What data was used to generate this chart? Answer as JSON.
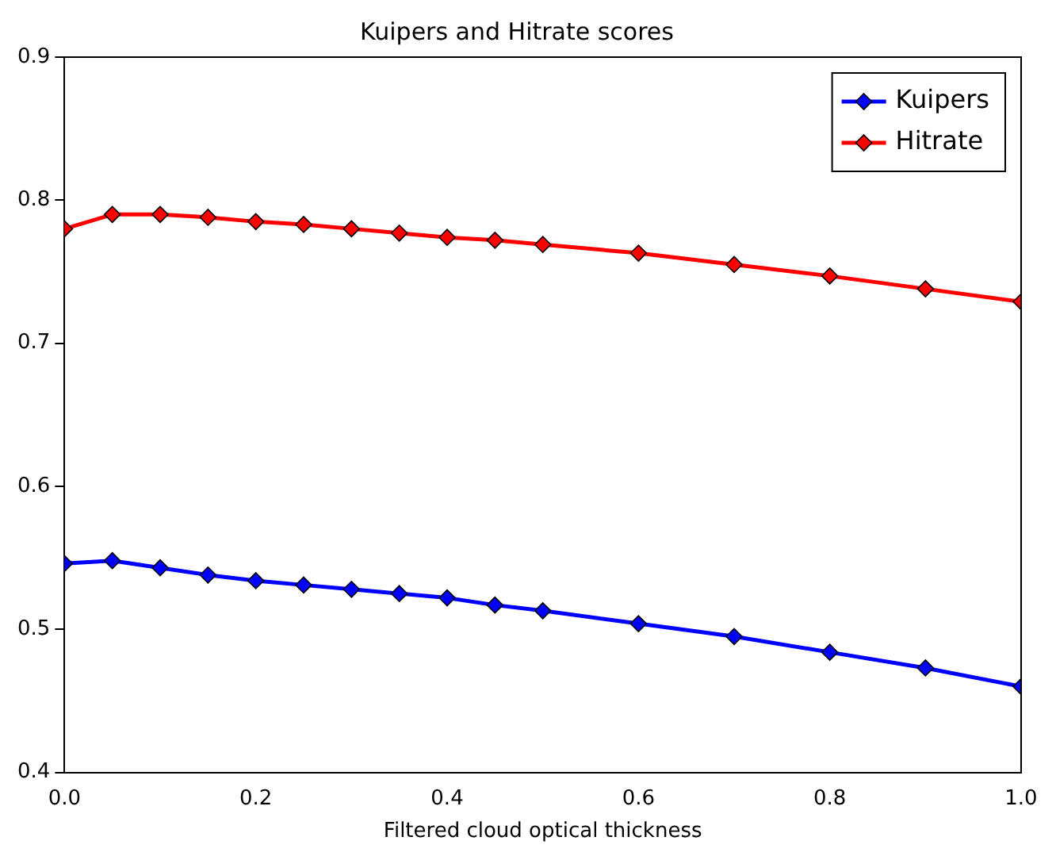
{
  "chart_data": {
    "type": "line",
    "title": "Kuipers and Hitrate scores",
    "xlabel": "Filtered cloud optical thickness",
    "x": [
      0,
      0.05,
      0.1,
      0.15,
      0.2,
      0.25,
      0.3,
      0.35,
      0.4,
      0.45,
      0.5,
      0.6,
      0.7,
      0.8,
      0.9,
      1.0
    ],
    "series": [
      {
        "name": "Kuipers",
        "color": "#0000ff",
        "values": [
          0.546,
          0.548,
          0.543,
          0.538,
          0.534,
          0.531,
          0.528,
          0.525,
          0.522,
          0.517,
          0.513,
          0.504,
          0.495,
          0.484,
          0.473,
          0.46
        ]
      },
      {
        "name": "Hitrate",
        "color": "#ff0000",
        "values": [
          0.78,
          0.79,
          0.79,
          0.788,
          0.785,
          0.783,
          0.78,
          0.777,
          0.774,
          0.772,
          0.769,
          0.763,
          0.755,
          0.747,
          0.738,
          0.729
        ]
      }
    ],
    "xlim": [
      0,
      1
    ],
    "xticks": [
      {
        "value": 0,
        "label": "0.0"
      },
      0.2,
      0.4,
      0.6,
      0.8,
      {
        "value": 1,
        "label": "1.0"
      }
    ],
    "ylim": [
      0.4,
      0.9
    ],
    "yticks": [
      0.4,
      0.5,
      0.6,
      0.7,
      0.8,
      0.9
    ],
    "grid": false,
    "legend": "top right",
    "marker": "diamond",
    "line_style": "solid"
  }
}
